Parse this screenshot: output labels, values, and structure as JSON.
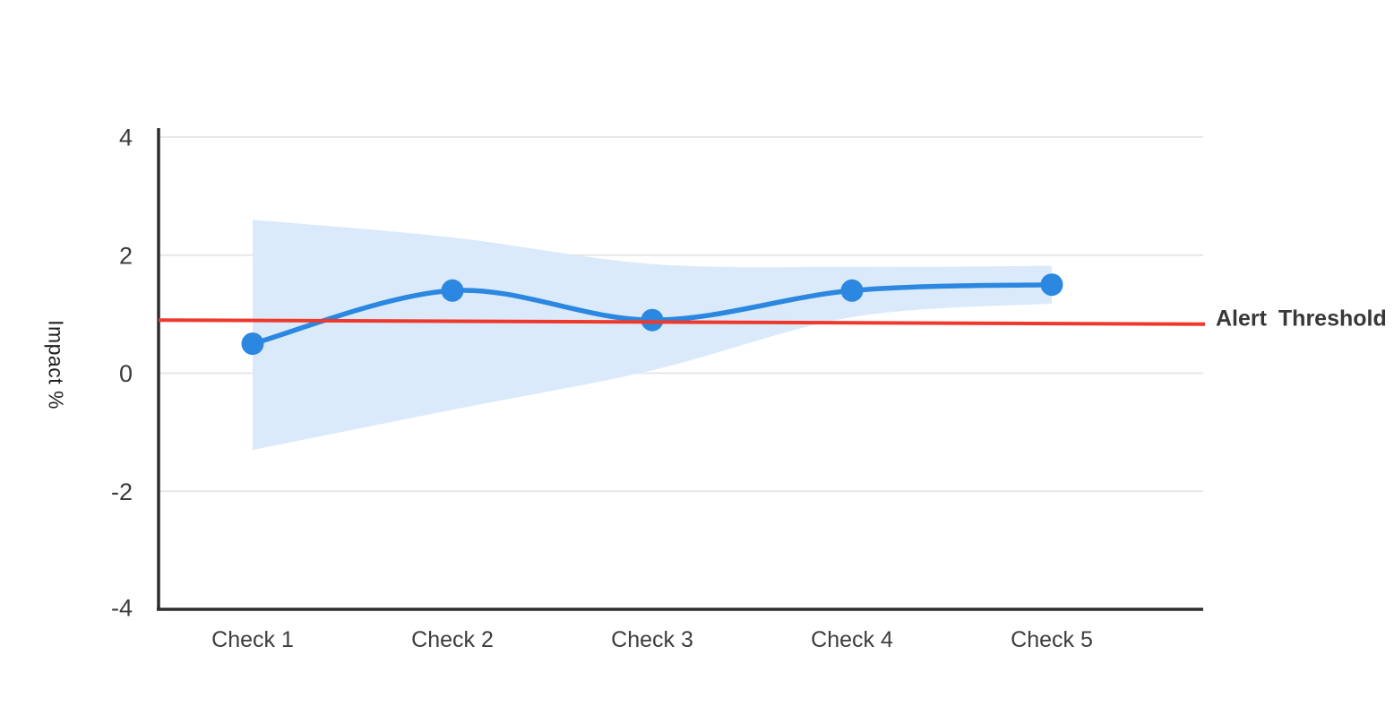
{
  "chart_data": {
    "type": "line",
    "title": "",
    "categories": [
      "Check 1",
      "Check 2",
      "Check 3",
      "Check 4",
      "Check 5"
    ],
    "series": [
      {
        "name": "Impact",
        "values": [
          0.5,
          1.4,
          0.9,
          1.4,
          1.5
        ],
        "color": "#2b87e0",
        "marker": "circle"
      }
    ],
    "confidence_band": {
      "upper": [
        2.6,
        2.3,
        1.85,
        1.8,
        1.82
      ],
      "lower": [
        -1.3,
        -0.62,
        0.05,
        0.95,
        1.18
      ],
      "color": "#daeafb"
    },
    "threshold": {
      "label": "Alert Threshold",
      "start_value": 0.9,
      "end_value": 0.83,
      "color": "#ef382c"
    },
    "xlabel": "",
    "ylabel": "Impact %",
    "ylim": [
      -4,
      4
    ],
    "yticks": [
      4,
      2,
      0,
      -2,
      -4
    ],
    "grid": true,
    "legend_position": "none"
  },
  "colors": {
    "background": "#ffffff",
    "axis": "#2d2d2d",
    "gridline": "#e4e4e4",
    "tick_text": "#3c3c3c",
    "label_text": "#3d3d3d"
  }
}
